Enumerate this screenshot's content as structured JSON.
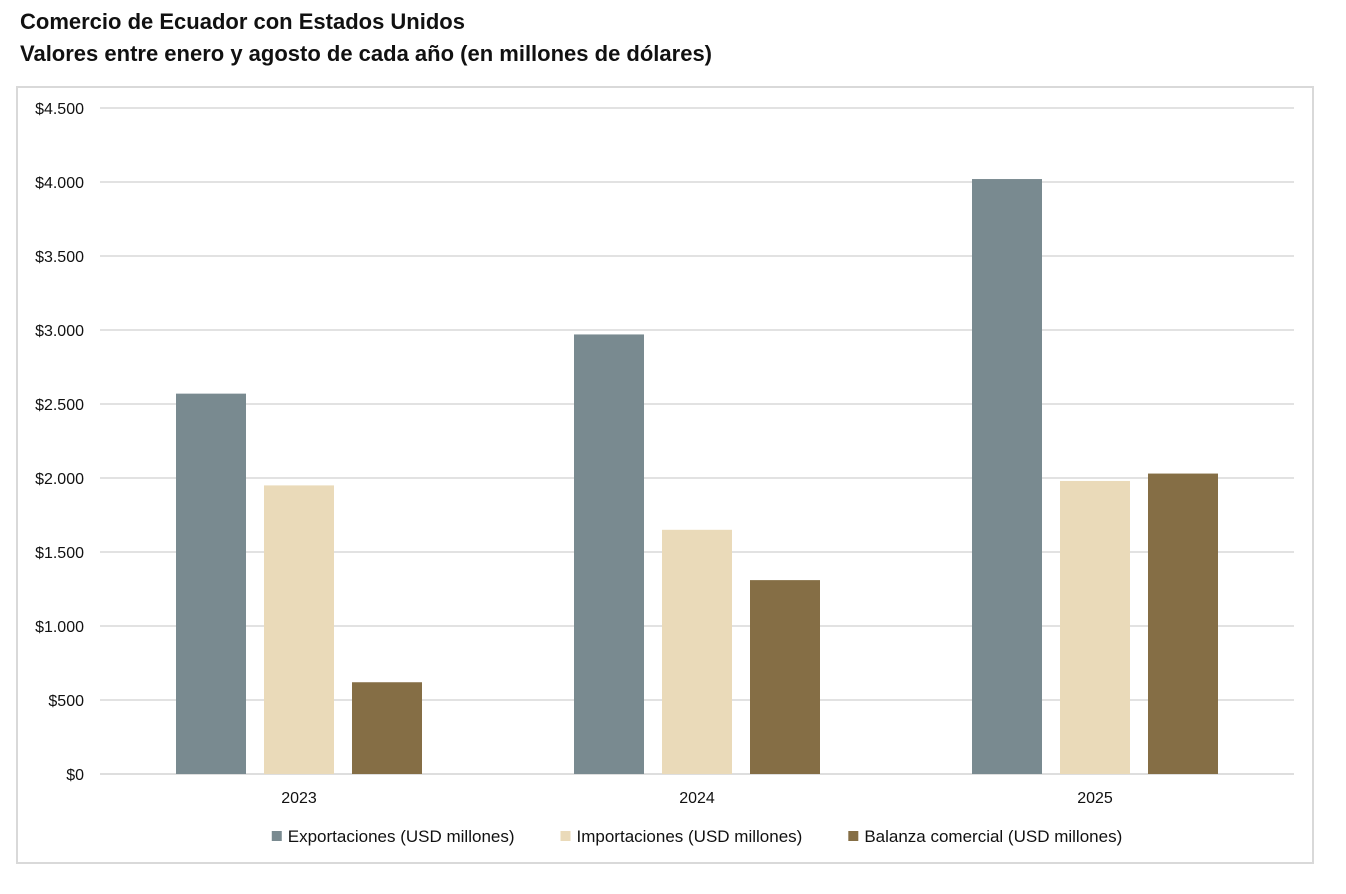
{
  "header": {
    "title": "Comercio de Ecuador con Estados Unidos",
    "subtitle": "Valores entre enero y agosto de cada año (en millones de dólares)"
  },
  "chart_data": {
    "type": "bar",
    "title": "Comercio de Ecuador con Estados Unidos",
    "subtitle": "Valores entre enero y agosto de cada año (en millones de dólares)",
    "xlabel": "",
    "ylabel": "",
    "categories": [
      "2023",
      "2024",
      "2025"
    ],
    "series": [
      {
        "name": "Exportaciones (USD millones)",
        "color": "#798A90",
        "values": [
          2570,
          2970,
          4020
        ]
      },
      {
        "name": "Importaciones (USD millones)",
        "color": "#EADAB9",
        "values": [
          1950,
          1650,
          1980
        ]
      },
      {
        "name": "Balanza comercial (USD millones)",
        "color": "#856E45",
        "values": [
          620,
          1310,
          2030
        ]
      }
    ],
    "ylim": [
      0,
      4500
    ],
    "yticks": [
      0,
      500,
      1000,
      1500,
      2000,
      2500,
      3000,
      3500,
      4000,
      4500
    ],
    "ytick_labels": [
      "$0",
      "$500",
      "$1.000",
      "$1.500",
      "$2.000",
      "$2.500",
      "$3.000",
      "$3.500",
      "$4.000",
      "$4.500"
    ],
    "grid": true,
    "legend_position": "bottom"
  }
}
